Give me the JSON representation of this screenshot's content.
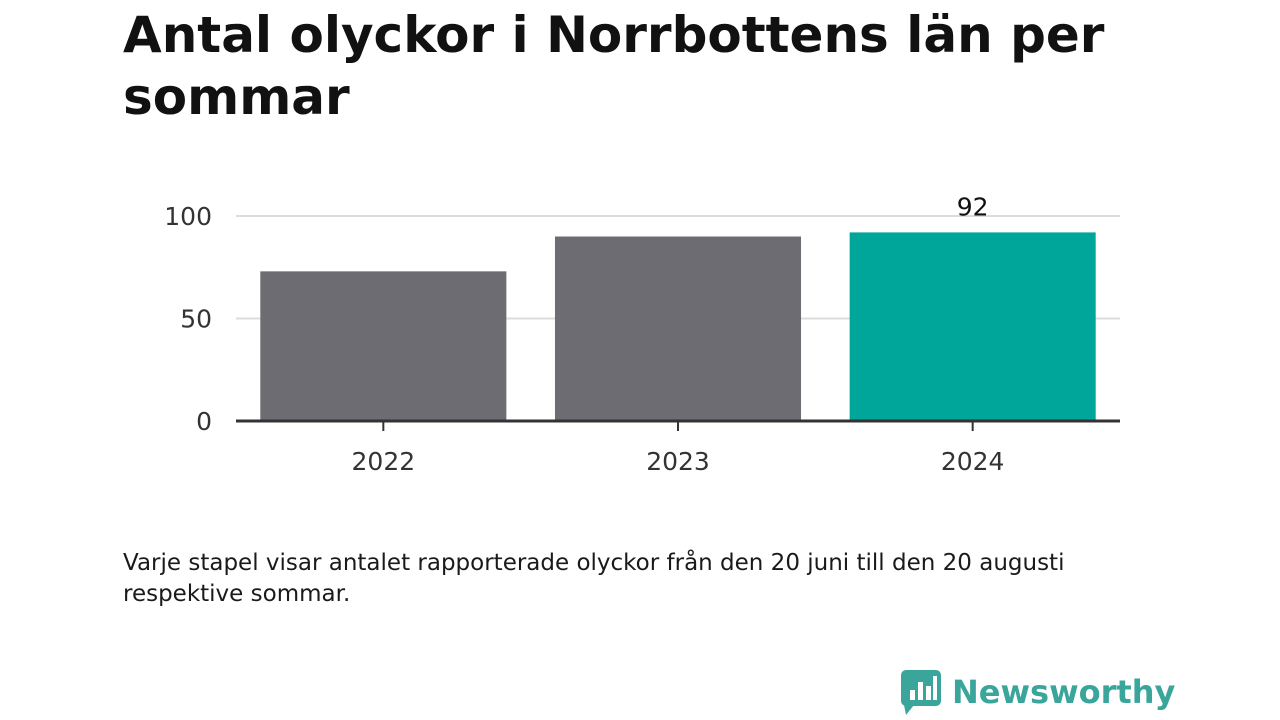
{
  "title": "Antal olyckor i Norrbottens län per sommar",
  "note": "Varje stapel visar antalet rapporterade olyckor från den 20 juni till den 20 augusti respektive sommar.",
  "brand": {
    "name": "Newsworthy",
    "icon": "newsworthy-logo-icon",
    "color": "#3aa59a"
  },
  "chart_data": {
    "type": "bar",
    "categories": [
      "2022",
      "2023",
      "2024"
    ],
    "values": [
      73,
      90,
      92
    ],
    "value_labels": [
      "",
      "",
      "92"
    ],
    "highlight_index": 2,
    "colors": {
      "default": "#6d6c73",
      "highlight": "#00a69a",
      "grid": "#dcdcdc",
      "axis": "#333333"
    },
    "yticks": [
      0,
      50,
      100
    ],
    "ylim": [
      0,
      100
    ],
    "grid": true,
    "xlabel": "",
    "ylabel": ""
  }
}
